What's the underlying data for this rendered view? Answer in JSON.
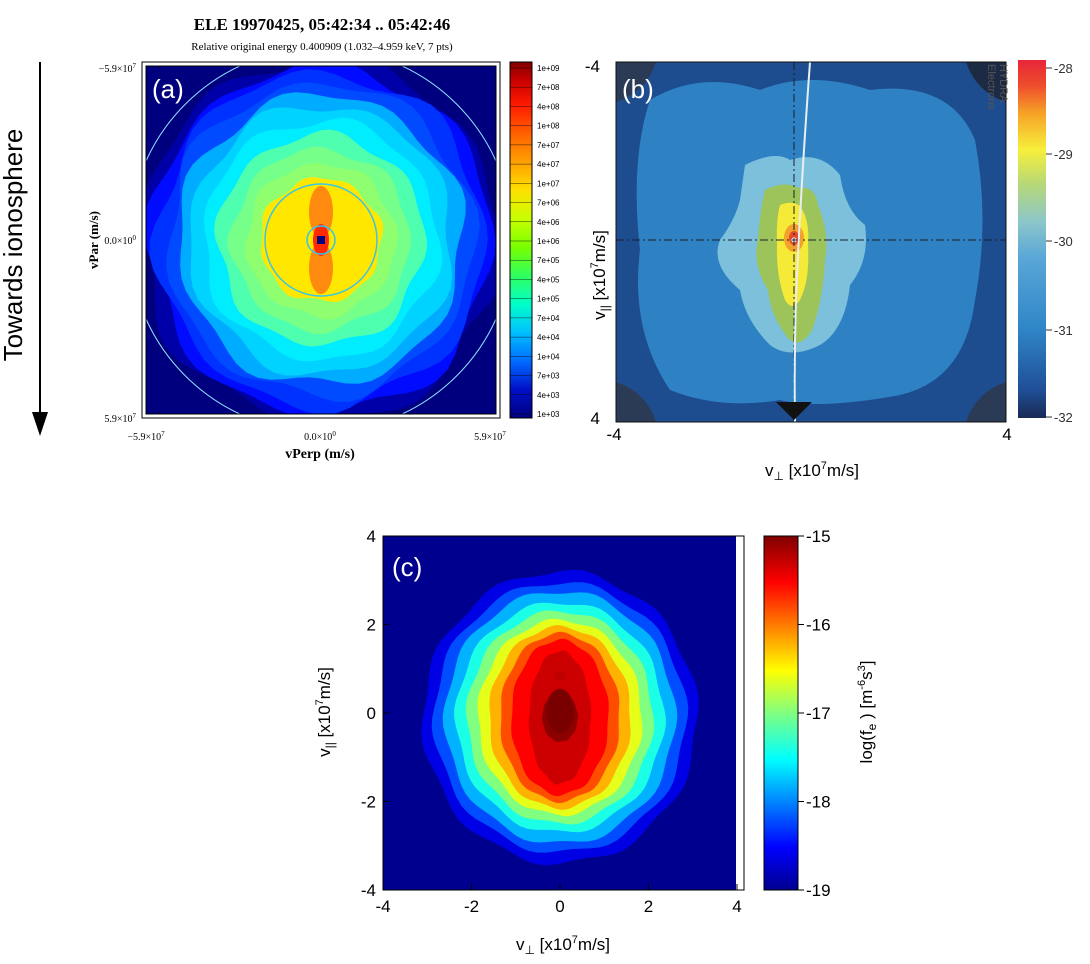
{
  "side_label": "Towards ionosphere",
  "panel_a": {
    "title": "ELE 19970425, 05:42:34 .. 05:42:46",
    "subtitle": "Relative original energy 0.400909 (1.032–4.959 keV, 7 pts)",
    "panel_label": "(a)",
    "xlabel": "vPerp (m/s)",
    "ylabel": "vPar (m/s)",
    "x_ticks": [
      "−5.9×10",
      "0.0×10",
      "5.9×10"
    ],
    "x_tick_exps": [
      "7",
      "0",
      "7"
    ],
    "y_ticks": [
      "−5.9×10",
      "0.0×10",
      "5.9×10"
    ],
    "y_tick_exps": [
      "7",
      "0",
      "7"
    ],
    "colorbar_labels": [
      "1e+09",
      "7e+08",
      "4e+08",
      "1e+08",
      "7e+07",
      "4e+07",
      "1e+07",
      "7e+06",
      "4e+06",
      "1e+06",
      "7e+05",
      "4e+05",
      "1e+05",
      "7e+04",
      "4e+04",
      "1e+04",
      "7e+03",
      "4e+03",
      "1e+03"
    ]
  },
  "panel_b": {
    "panel_label": "(b)",
    "instrument_line1": "HYDRA",
    "instrument_line2": "Electrons",
    "x_ticks": [
      "-4",
      "4"
    ],
    "y_ticks": [
      "-4",
      "4"
    ],
    "xlabel_pre": "v",
    "xlabel_sub": "⊥",
    "xlabel_post": " [x10",
    "xlabel_exp": "7",
    "xlabel_end": "m/s]",
    "ylabel_pre": "v",
    "ylabel_sub": "||",
    "ylabel_post": " [x10",
    "ylabel_exp": "7",
    "ylabel_end": "m/s]",
    "colorbar_ticks": [
      "-28",
      "-29",
      "-30",
      "-31",
      "-32"
    ]
  },
  "panel_c": {
    "panel_label": "(c)",
    "x_ticks": [
      "-4",
      "-2",
      "0",
      "2",
      "4"
    ],
    "y_ticks": [
      "4",
      "2",
      "0",
      "-2",
      "-4"
    ],
    "xlabel_pre": "v",
    "xlabel_sub": "⊥",
    "xlabel_post": " [x10",
    "xlabel_exp": "7",
    "xlabel_end": "m/s]",
    "ylabel_pre": "v",
    "ylabel_sub": "||",
    "ylabel_post": " [x10",
    "ylabel_exp": "7",
    "ylabel_end": "m/s]",
    "colorbar_ticks": [
      "-15",
      "-16",
      "-17",
      "-18",
      "-19"
    ],
    "colorbar_label_pre": "log(f",
    "colorbar_label_sub": "e",
    "colorbar_label_post": " ) [m",
    "colorbar_label_exp": "-6",
    "colorbar_label_s": "s",
    "colorbar_label_exp2": "3",
    "colorbar_label_end": "]"
  },
  "chart_data": [
    {
      "type": "heatmap",
      "panel": "(a)",
      "title": "ELE 19970425, 05:42:34 .. 05:42:46",
      "subtitle": "Relative original energy 0.400909 (1.032–4.959 keV, 7 pts)",
      "xlabel": "vPerp (m/s)",
      "ylabel": "vPar (m/s)",
      "xlim": [
        -59000000.0,
        59000000.0
      ],
      "ylim": [
        59000000.0,
        -59000000.0
      ],
      "colorbar_scale": "log",
      "colorbar_range": [
        1000.0,
        1000000000.0
      ],
      "levels": [
        {
          "r": 1.0,
          "value": 1000.0
        },
        {
          "r": 0.96,
          "value": 4000.0
        },
        {
          "r": 0.92,
          "value": 7000.0
        },
        {
          "r": 0.86,
          "value": 10000.0
        },
        {
          "r": 0.8,
          "value": 40000.0
        },
        {
          "r": 0.74,
          "value": 70000.0
        },
        {
          "r": 0.66,
          "value": 100000.0
        },
        {
          "r": 0.58,
          "value": 400000.0
        },
        {
          "r": 0.5,
          "value": 700000.0
        },
        {
          "r": 0.42,
          "value": 1000000.0
        },
        {
          "r": 0.34,
          "value": 7000000.0
        }
      ],
      "core_value": 100000000.0
    },
    {
      "type": "heatmap",
      "panel": "(b)",
      "xlim": [
        -4,
        4
      ],
      "ylim": [
        4,
        -4
      ],
      "colorbar_range": [
        -32,
        -28
      ],
      "colorbar_ticks": [
        -28,
        -29,
        -30,
        -31,
        -32
      ],
      "grid": true
    },
    {
      "type": "heatmap",
      "panel": "(c)",
      "xlim": [
        -4,
        4
      ],
      "ylim": [
        -4,
        4
      ],
      "x_ticks": [
        -4,
        -2,
        0,
        2,
        4
      ],
      "y_ticks": [
        -4,
        -2,
        0,
        2,
        4
      ],
      "colorbar_range": [
        -19,
        -15
      ],
      "colorbar_ticks": [
        -15,
        -16,
        -17,
        -18,
        -19
      ],
      "levels": [
        {
          "rx": 3.1,
          "ry": 3.3,
          "value": -18.6
        },
        {
          "rx": 2.85,
          "ry": 3.05,
          "value": -18.2
        },
        {
          "rx": 2.6,
          "ry": 2.85,
          "value": -17.8
        },
        {
          "rx": 2.35,
          "ry": 2.6,
          "value": -17.4
        },
        {
          "rx": 2.1,
          "ry": 2.4,
          "value": -17.0
        },
        {
          "rx": 1.85,
          "ry": 2.2,
          "value": -16.6
        },
        {
          "rx": 1.6,
          "ry": 2.05,
          "value": -16.2
        },
        {
          "rx": 1.35,
          "ry": 1.9,
          "value": -15.8
        },
        {
          "rx": 1.1,
          "ry": 1.75,
          "value": -15.5
        },
        {
          "rx": 0.7,
          "ry": 1.5,
          "value": -15.3
        },
        {
          "rx": 0.4,
          "ry": 0.55,
          "value": -15.05
        }
      ]
    }
  ]
}
